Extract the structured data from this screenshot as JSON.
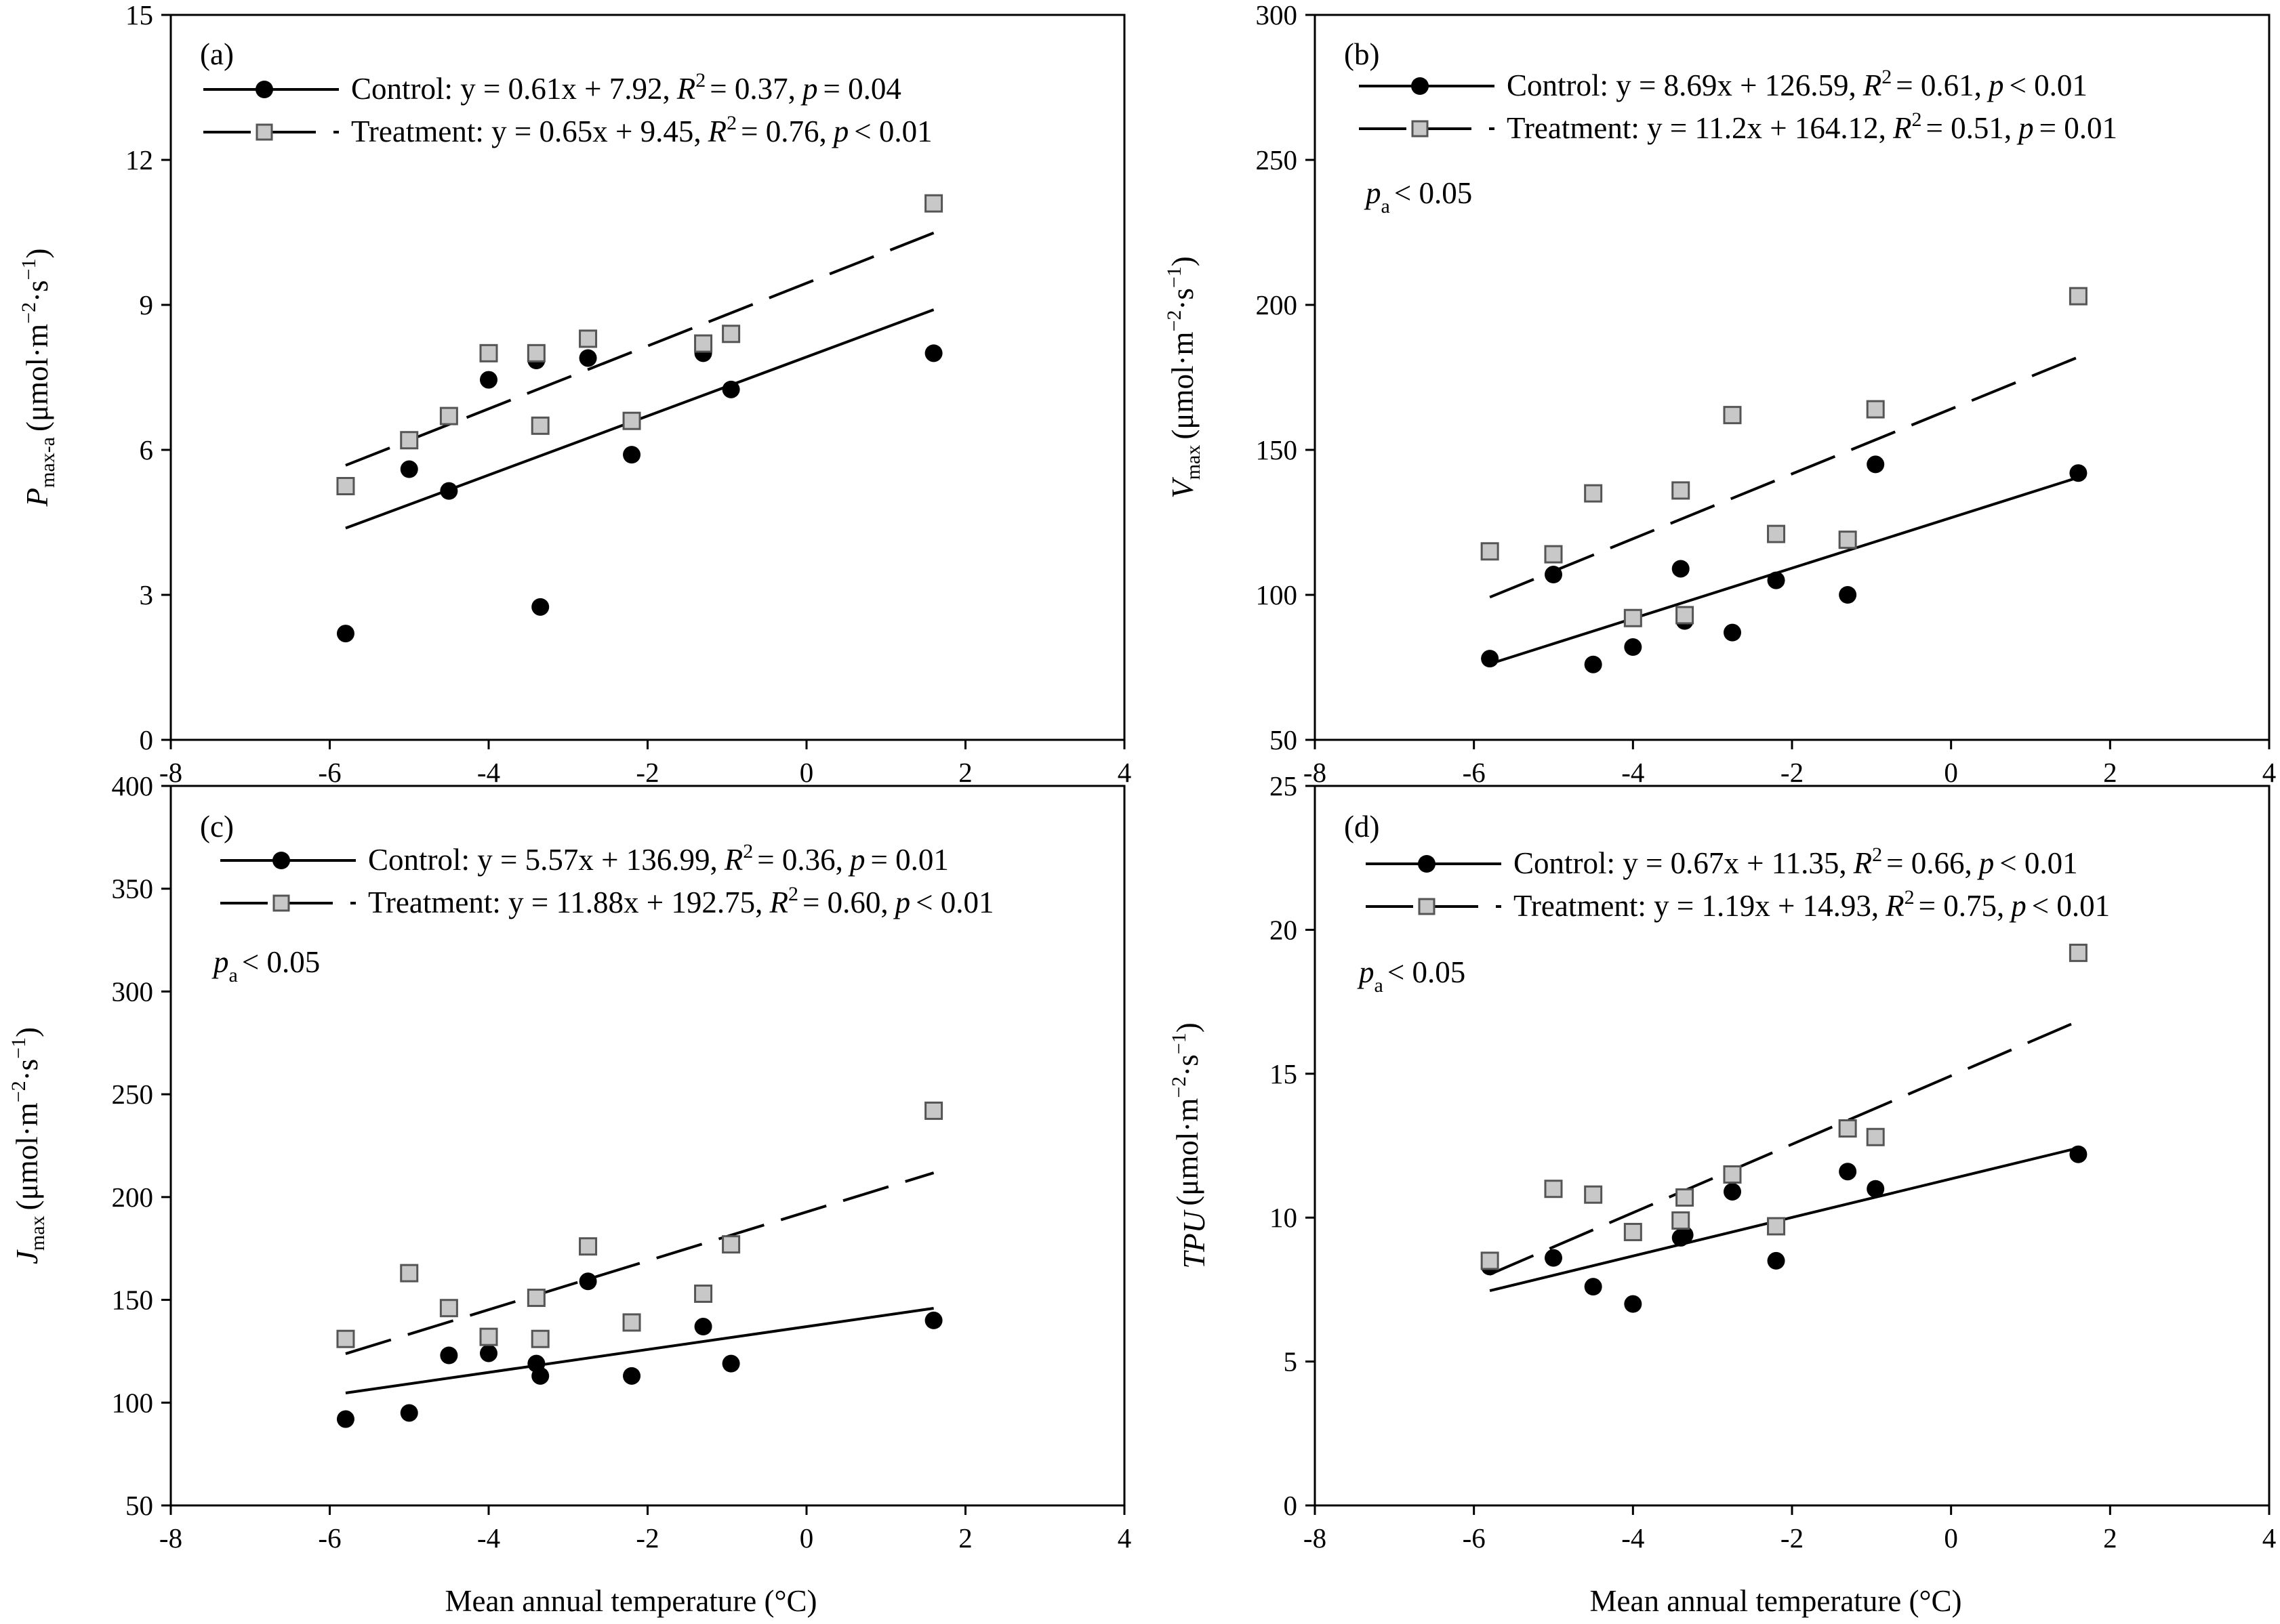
{
  "figure": {
    "x_axis_title": "Mean annual temperature (°C)"
  },
  "chart_data": [
    {
      "type": "scatter",
      "panel_label": "(a)",
      "ylabel_main": "P",
      "ylabel_sub": "max-a",
      "ylabel_unit": "(μmol·m",
      "ylabel_exp1": "−2",
      "ylabel_mid": "·s",
      "ylabel_exp2": "−1",
      "ylabel_close": ")",
      "xlim": [
        -8,
        4
      ],
      "ylim": [
        0,
        15
      ],
      "xticks": [
        "-8",
        "-6",
        "-4",
        "-2",
        "0",
        "2",
        "4"
      ],
      "yticks": [
        "0",
        "3",
        "6",
        "9",
        "12",
        "15"
      ],
      "pa_text": "",
      "series": [
        {
          "name": "Control",
          "marker": "circle",
          "line_style": "solid",
          "equation": "y = 0.61x + 7.92,",
          "r2": "= 0.37,",
          "p": "= 0.04",
          "x": [
            -5.8,
            -5.0,
            -4.5,
            -4.0,
            -3.4,
            -3.35,
            -2.75,
            -2.2,
            -1.3,
            -0.95,
            1.6
          ],
          "y": [
            2.2,
            5.6,
            5.15,
            7.45,
            7.85,
            2.75,
            7.9,
            5.9,
            8.0,
            7.25,
            8.0
          ],
          "fit": {
            "x": [
              -5.8,
              1.6
            ],
            "y": [
              4.38,
              8.9
            ]
          }
        },
        {
          "name": "Treatment",
          "marker": "square",
          "line_style": "dashed",
          "equation": "y = 0.65x + 9.45,",
          "r2": "= 0.76,",
          "p": "< 0.01",
          "x": [
            -5.8,
            -5.0,
            -4.5,
            -4.0,
            -3.4,
            -3.35,
            -2.75,
            -2.2,
            -1.3,
            -0.95,
            1.6
          ],
          "y": [
            5.25,
            6.2,
            6.7,
            8.0,
            8.0,
            6.5,
            8.3,
            6.6,
            8.2,
            8.4,
            11.1
          ],
          "fit": {
            "x": [
              -5.8,
              1.6
            ],
            "y": [
              5.68,
              10.49
            ]
          }
        }
      ]
    },
    {
      "type": "scatter",
      "panel_label": "(b)",
      "ylabel_main": "V",
      "ylabel_sub": "max",
      "ylabel_unit": "(μmol·m",
      "ylabel_exp1": "−2",
      "ylabel_mid": "·s",
      "ylabel_exp2": "−1",
      "ylabel_close": ")",
      "xlim": [
        -8,
        4
      ],
      "ylim": [
        50,
        300
      ],
      "xticks": [
        "-8",
        "-6",
        "-4",
        "-2",
        "0",
        "2",
        "4"
      ],
      "yticks": [
        "50",
        "100",
        "150",
        "200",
        "250",
        "300"
      ],
      "pa_text": "< 0.05",
      "series": [
        {
          "name": "Control",
          "marker": "circle",
          "line_style": "solid",
          "equation": "y = 8.69x + 126.59,",
          "r2": "= 0.61,",
          "p": "< 0.01",
          "x": [
            -5.8,
            -5.0,
            -4.5,
            -4.0,
            -3.4,
            -3.35,
            -2.75,
            -2.2,
            -1.3,
            -0.95,
            1.6
          ],
          "y": [
            78,
            107,
            76,
            82,
            109,
            91,
            87,
            105,
            100,
            145,
            142
          ],
          "fit": {
            "x": [
              -5.8,
              1.6
            ],
            "y": [
              76.2,
              140.5
            ]
          }
        },
        {
          "name": "Treatment",
          "marker": "square",
          "line_style": "dashed",
          "equation": "y = 11.2x + 164.12,",
          "r2": "= 0.51,",
          "p": "= 0.01",
          "x": [
            -5.8,
            -5.0,
            -4.5,
            -4.0,
            -3.4,
            -3.35,
            -2.75,
            -2.2,
            -1.3,
            -0.95,
            1.6
          ],
          "y": [
            115,
            114,
            135,
            92,
            136,
            93,
            162,
            121,
            119,
            164,
            203
          ],
          "fit": {
            "x": [
              -5.8,
              1.6
            ],
            "y": [
              99.2,
              182.0
            ]
          }
        }
      ]
    },
    {
      "type": "scatter",
      "panel_label": "(c)",
      "ylabel_main": "J",
      "ylabel_sub": "max",
      "ylabel_unit": "(μmol·m",
      "ylabel_exp1": "−2",
      "ylabel_mid": "·s",
      "ylabel_exp2": "−1",
      "ylabel_close": ")",
      "xlim": [
        -8,
        4
      ],
      "ylim": [
        50,
        400
      ],
      "xticks": [
        "-8",
        "-6",
        "-4",
        "-2",
        "0",
        "2",
        "4"
      ],
      "yticks": [
        "50",
        "100",
        "150",
        "200",
        "250",
        "300",
        "350",
        "400"
      ],
      "pa_text": "< 0.05",
      "series": [
        {
          "name": "Control",
          "marker": "circle",
          "line_style": "solid",
          "equation": "y = 5.57x + 136.99,",
          "r2": "= 0.36,",
          "p": "= 0.01",
          "x": [
            -5.8,
            -5.0,
            -4.5,
            -4.0,
            -3.4,
            -3.35,
            -2.75,
            -2.2,
            -1.3,
            -0.95,
            1.6
          ],
          "y": [
            92,
            95,
            123,
            124,
            119,
            113,
            159,
            113,
            137,
            119,
            140
          ],
          "fit": {
            "x": [
              -5.8,
              1.6
            ],
            "y": [
              104.7,
              145.9
            ]
          }
        },
        {
          "name": "Treatment",
          "marker": "square",
          "line_style": "dashed",
          "equation": "y = 11.88x + 192.75,",
          "r2": "= 0.60,",
          "p": "< 0.01",
          "x": [
            -5.8,
            -5.0,
            -4.5,
            -4.0,
            -3.4,
            -3.35,
            -2.75,
            -2.2,
            -1.3,
            -0.95,
            1.6
          ],
          "y": [
            131,
            163,
            146,
            132,
            151,
            131,
            176,
            139,
            153,
            177,
            242
          ],
          "fit": {
            "x": [
              -5.8,
              1.6
            ],
            "y": [
              123.8,
              211.8
            ]
          }
        }
      ]
    },
    {
      "type": "scatter",
      "panel_label": "(d)",
      "ylabel_main": "TPU",
      "ylabel_sub": "",
      "ylabel_unit": "(μmol·m",
      "ylabel_exp1": "−2",
      "ylabel_mid": "·s",
      "ylabel_exp2": "−1",
      "ylabel_close": ")",
      "xlim": [
        -8,
        4
      ],
      "ylim": [
        0,
        25
      ],
      "xticks": [
        "-8",
        "-6",
        "-4",
        "-2",
        "0",
        "2",
        "4"
      ],
      "yticks": [
        "0",
        "5",
        "10",
        "15",
        "20",
        "25"
      ],
      "pa_text": "< 0.05",
      "series": [
        {
          "name": "Control",
          "marker": "circle",
          "line_style": "solid",
          "equation": "y = 0.67x + 11.35,",
          "r2": "= 0.66,",
          "p": "< 0.01",
          "x": [
            -5.8,
            -5.0,
            -4.5,
            -4.0,
            -3.4,
            -3.35,
            -2.75,
            -2.2,
            -1.3,
            -0.95,
            1.6
          ],
          "y": [
            8.3,
            8.6,
            7.6,
            7.0,
            9.3,
            9.4,
            10.9,
            8.5,
            11.6,
            11.0,
            12.2
          ],
          "fit": {
            "x": [
              -5.8,
              1.6
            ],
            "y": [
              7.46,
              12.42
            ]
          }
        },
        {
          "name": "Treatment",
          "marker": "square",
          "line_style": "dashed",
          "equation": "y = 1.19x + 14.93,",
          "r2": "= 0.75,",
          "p": "< 0.01",
          "x": [
            -5.8,
            -5.0,
            -4.5,
            -4.0,
            -3.4,
            -3.35,
            -2.75,
            -2.2,
            -1.3,
            -0.95,
            1.6
          ],
          "y": [
            8.5,
            11.0,
            10.8,
            9.5,
            9.9,
            10.7,
            11.5,
            9.7,
            13.1,
            12.8,
            19.2
          ],
          "fit": {
            "x": [
              -5.8,
              1.6
            ],
            "y": [
              8.03,
              16.83
            ]
          }
        }
      ]
    }
  ]
}
